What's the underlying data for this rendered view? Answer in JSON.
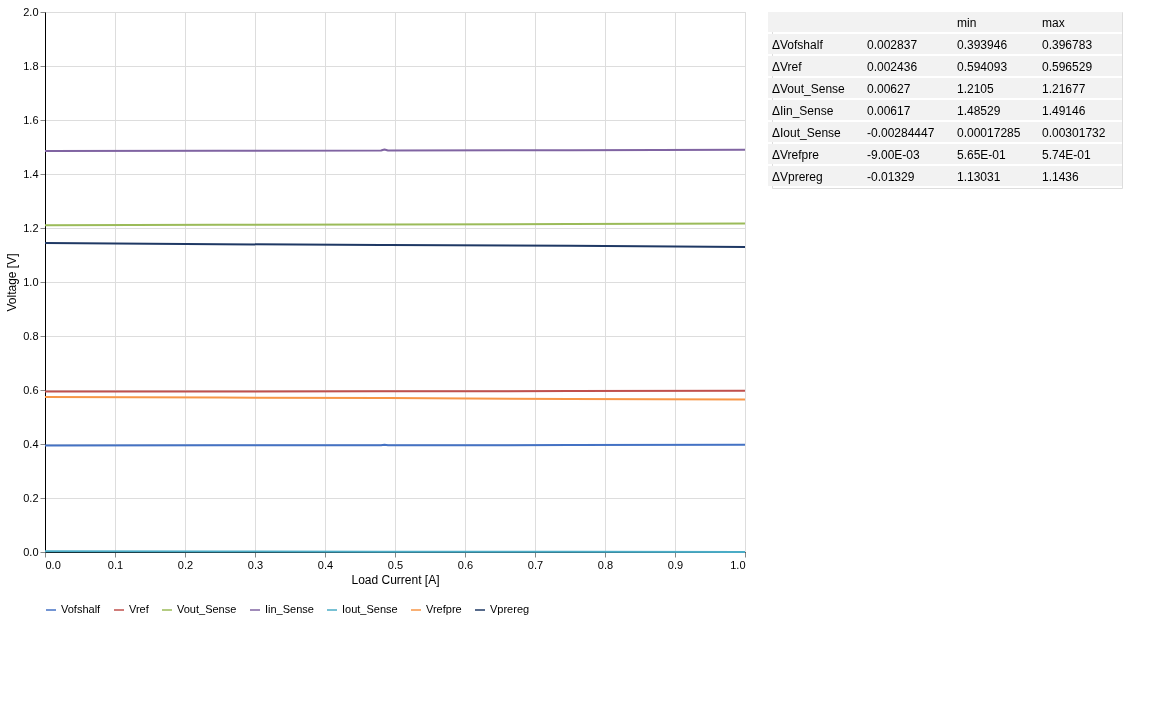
{
  "chart_data": {
    "type": "line",
    "xlabel": "Load Current [A]",
    "ylabel": "Voltage [V]",
    "xlim": [
      0,
      1
    ],
    "ylim": [
      0,
      2
    ],
    "xticks": [
      {
        "value": 0,
        "label": "0.0"
      },
      {
        "value": 0.1,
        "label": "0.1"
      },
      {
        "value": 0.2,
        "label": "0.2"
      },
      {
        "value": 0.3,
        "label": "0.3"
      },
      {
        "value": 0.4,
        "label": "0.4"
      },
      {
        "value": 0.5,
        "label": "0.5"
      },
      {
        "value": 0.6,
        "label": "0.6"
      },
      {
        "value": 0.7,
        "label": "0.7"
      },
      {
        "value": 0.8,
        "label": "0.8"
      },
      {
        "value": 0.9,
        "label": "0.9"
      },
      {
        "value": 1,
        "label": "1.0"
      }
    ],
    "yticks": [
      {
        "value": 0,
        "label": "0.0"
      },
      {
        "value": 0.2,
        "label": "0.2"
      },
      {
        "value": 0.4,
        "label": "0.4"
      },
      {
        "value": 0.6,
        "label": "0.6"
      },
      {
        "value": 0.8,
        "label": "0.8"
      },
      {
        "value": 1,
        "label": "1.0"
      },
      {
        "value": 1.2,
        "label": "1.2"
      },
      {
        "value": 1.4,
        "label": "1.4"
      },
      {
        "value": 1.6,
        "label": "1.6"
      },
      {
        "value": 1.8,
        "label": "1.8"
      },
      {
        "value": 2,
        "label": "2.0"
      }
    ],
    "grid": true,
    "legend": "bottom",
    "marker": "none",
    "line_style": "solid",
    "x": [
      0,
      0.25,
      0.48,
      0.485,
      0.49,
      0.75,
      1
    ],
    "series": [
      {
        "name": "Vofshalf",
        "color": "#4472c4",
        "values": [
          0.394,
          0.395,
          0.395,
          0.397,
          0.395,
          0.396,
          0.397
        ]
      },
      {
        "name": "Vref",
        "color": "#c0504d",
        "values": [
          0.594,
          0.594,
          0.595,
          0.595,
          0.595,
          0.596,
          0.597
        ]
      },
      {
        "name": "Vout_Sense",
        "color": "#9bbb59",
        "values": [
          1.21,
          1.212,
          1.213,
          1.213,
          1.213,
          1.215,
          1.217
        ]
      },
      {
        "name": "Iin_Sense",
        "color": "#8064a2",
        "values": [
          1.485,
          1.486,
          1.487,
          1.491,
          1.487,
          1.488,
          1.49
        ]
      },
      {
        "name": "Iout_Sense",
        "color": "#4bacc6",
        "values": [
          0.003,
          0.002,
          0.001,
          0.001,
          0.001,
          0.001,
          0
        ]
      },
      {
        "name": "Vrefpre",
        "color": "#f79646",
        "values": [
          0.574,
          0.572,
          0.57,
          0.57,
          0.57,
          0.567,
          0.565
        ]
      },
      {
        "name": "Vprereg",
        "color": "#1f3864",
        "values": [
          1.144,
          1.14,
          1.137,
          1.137,
          1.137,
          1.134,
          1.13
        ]
      }
    ],
    "annotations": [
      "min",
      "max",
      "ΔVofshalf",
      "0.002837",
      "0.393946",
      "0.396783",
      "ΔVref",
      "0.002436",
      "0.594093",
      "0.596529",
      "ΔVout_Sense",
      "0.00627",
      "1.2105",
      "1.21677",
      "ΔIin_Sense",
      "0.00617",
      "1.48529",
      "1.49146",
      "ΔIout_Sense",
      "-0.00284447",
      "0.00017285",
      "0.00301732",
      "ΔVrefpre",
      "-9.00E-03",
      "5.65E-01",
      "5.74E-01",
      "ΔVprereg",
      "-0.01329",
      "1.13031",
      "1.1436"
    ]
  }
}
